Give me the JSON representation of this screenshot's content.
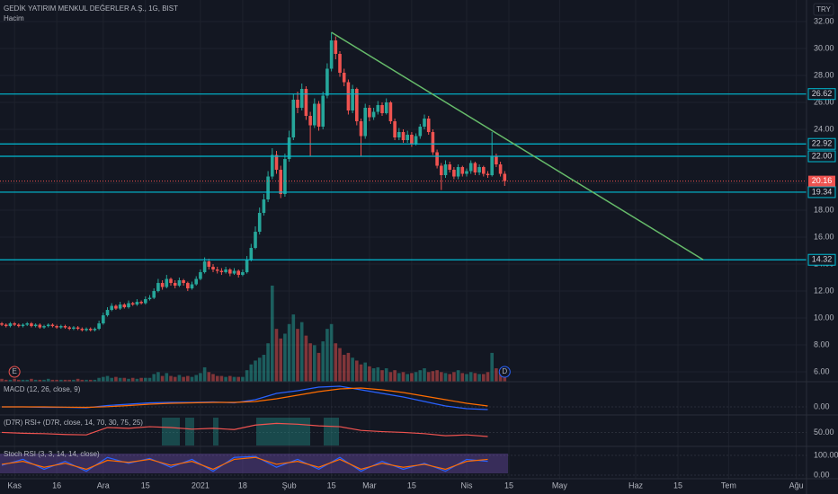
{
  "header": {
    "title": "GEDİK YATIRIM MENKUL DEĞERLER A.Ş., 1G, BIST",
    "volume_label": "Hacim",
    "currency": "TRY"
  },
  "main": {
    "ylim": [
      5.27,
      33.6
    ],
    "xlim": [
      -0.43,
      190.43
    ],
    "yticks": [
      {
        "value": 6,
        "label": "6.00"
      },
      {
        "value": 8,
        "label": "8.00"
      },
      {
        "value": 10,
        "label": "10.00"
      },
      {
        "value": 12,
        "label": "12.00"
      },
      {
        "value": 14,
        "label": "14.00"
      },
      {
        "value": 16,
        "label": "16.00"
      },
      {
        "value": 18,
        "label": "18.00"
      },
      {
        "value": 20,
        "label": "20.00"
      },
      {
        "value": 22,
        "label": "22.00"
      },
      {
        "value": 24,
        "label": "24.00"
      },
      {
        "value": 26,
        "label": "26.00"
      },
      {
        "value": 28,
        "label": "28.00"
      },
      {
        "value": 30,
        "label": "30.00"
      },
      {
        "value": 32,
        "label": "32.00"
      }
    ],
    "xticks": [
      {
        "value": 3,
        "label": "Kas"
      },
      {
        "value": 13,
        "label": "16"
      },
      {
        "value": 24,
        "label": "Ara"
      },
      {
        "value": 34,
        "label": "15"
      },
      {
        "value": 47,
        "label": "2021"
      },
      {
        "value": 57,
        "label": "18"
      },
      {
        "value": 68,
        "label": "Şub"
      },
      {
        "value": 78,
        "label": "15"
      },
      {
        "value": 87,
        "label": "Mar"
      },
      {
        "value": 97,
        "label": "15"
      },
      {
        "value": 110,
        "label": "Nis"
      },
      {
        "value": 120,
        "label": "15"
      },
      {
        "value": 132,
        "label": "May"
      },
      {
        "value": 150,
        "label": "Haz"
      },
      {
        "value": 160,
        "label": "15"
      },
      {
        "value": 172,
        "label": "Tem"
      },
      {
        "value": 188,
        "label": "Ağu"
      }
    ],
    "levels": [
      {
        "value": 26.62,
        "label": "26.62"
      },
      {
        "value": 22.92,
        "label": "22.92"
      },
      {
        "value": 22.0,
        "label": "22.00"
      },
      {
        "value": 19.34,
        "label": "19.34"
      },
      {
        "value": 14.32,
        "label": "14.32"
      }
    ],
    "last_price": {
      "value": 20.16,
      "label": "20.16"
    },
    "trendline": {
      "from": [
        78,
        31.2
      ],
      "to": [
        166,
        14.32
      ]
    },
    "events": [
      {
        "x": 3,
        "label": "E"
      },
      {
        "x": 119,
        "label": "D"
      }
    ],
    "up_color": "#26a69a",
    "down_color": "#ef5350",
    "level_color": "#00bcd4",
    "trend_color": "#66bb6a",
    "candles": [
      [
        9.6,
        9.7,
        9.4,
        9.5
      ],
      [
        9.5,
        9.6,
        9.3,
        9.4
      ],
      [
        9.4,
        9.7,
        9.3,
        9.6
      ],
      [
        9.6,
        9.7,
        9.4,
        9.5
      ],
      [
        9.5,
        9.6,
        9.3,
        9.4
      ],
      [
        9.4,
        9.6,
        9.3,
        9.5
      ],
      [
        9.5,
        9.7,
        9.4,
        9.6
      ],
      [
        9.6,
        9.7,
        9.3,
        9.4
      ],
      [
        9.4,
        9.6,
        9.3,
        9.5
      ],
      [
        9.5,
        9.6,
        9.2,
        9.3
      ],
      [
        9.3,
        9.5,
        9.2,
        9.4
      ],
      [
        9.4,
        9.6,
        9.3,
        9.5
      ],
      [
        9.5,
        9.6,
        9.3,
        9.4
      ],
      [
        9.4,
        9.5,
        9.2,
        9.3
      ],
      [
        9.3,
        9.5,
        9.2,
        9.4
      ],
      [
        9.4,
        9.5,
        9.2,
        9.3
      ],
      [
        9.3,
        9.4,
        9.1,
        9.2
      ],
      [
        9.2,
        9.4,
        9.1,
        9.3
      ],
      [
        9.3,
        9.4,
        9.1,
        9.2
      ],
      [
        9.2,
        9.3,
        9.0,
        9.1
      ],
      [
        9.1,
        9.3,
        9.0,
        9.2
      ],
      [
        9.2,
        9.3,
        9.0,
        9.1
      ],
      [
        9.1,
        9.3,
        9.0,
        9.2
      ],
      [
        9.2,
        9.8,
        9.1,
        9.6
      ],
      [
        9.6,
        10.4,
        9.5,
        10.2
      ],
      [
        10.2,
        10.8,
        10.1,
        10.6
      ],
      [
        10.6,
        11.1,
        10.5,
        10.9
      ],
      [
        10.9,
        11.0,
        10.6,
        10.7
      ],
      [
        10.7,
        11.2,
        10.6,
        11.0
      ],
      [
        11.0,
        11.1,
        10.7,
        10.8
      ],
      [
        10.8,
        11.3,
        10.7,
        11.1
      ],
      [
        11.1,
        11.2,
        10.9,
        11.0
      ],
      [
        11.0,
        11.4,
        10.9,
        11.2
      ],
      [
        11.2,
        11.3,
        11.0,
        11.1
      ],
      [
        11.1,
        11.6,
        11.0,
        11.4
      ],
      [
        11.4,
        11.7,
        11.3,
        11.5
      ],
      [
        11.5,
        12.2,
        11.4,
        12.0
      ],
      [
        12.0,
        12.9,
        11.9,
        12.6
      ],
      [
        12.6,
        12.8,
        12.1,
        12.3
      ],
      [
        12.3,
        13.2,
        12.2,
        12.9
      ],
      [
        12.9,
        13.0,
        12.4,
        12.6
      ],
      [
        12.6,
        12.8,
        12.2,
        12.4
      ],
      [
        12.4,
        13.0,
        12.3,
        12.8
      ],
      [
        12.8,
        12.9,
        12.4,
        12.6
      ],
      [
        12.6,
        12.7,
        12.0,
        12.2
      ],
      [
        12.2,
        12.7,
        12.1,
        12.5
      ],
      [
        12.5,
        13.1,
        12.4,
        12.9
      ],
      [
        12.9,
        13.6,
        12.8,
        13.4
      ],
      [
        13.4,
        14.5,
        13.3,
        14.2
      ],
      [
        14.2,
        14.4,
        13.6,
        13.8
      ],
      [
        13.8,
        14.0,
        13.4,
        13.6
      ],
      [
        13.6,
        13.8,
        13.3,
        13.5
      ],
      [
        13.5,
        13.7,
        13.2,
        13.4
      ],
      [
        13.4,
        13.8,
        13.3,
        13.6
      ],
      [
        13.6,
        13.7,
        13.1,
        13.3
      ],
      [
        13.3,
        13.7,
        13.2,
        13.5
      ],
      [
        13.5,
        13.6,
        13.0,
        13.2
      ],
      [
        13.2,
        13.6,
        13.1,
        13.4
      ],
      [
        13.4,
        14.6,
        13.3,
        14.3
      ],
      [
        14.3,
        15.5,
        14.2,
        15.2
      ],
      [
        15.2,
        16.8,
        15.1,
        16.4
      ],
      [
        16.4,
        18.2,
        16.2,
        17.8
      ],
      [
        17.8,
        19.2,
        17.6,
        18.8
      ],
      [
        18.8,
        20.9,
        18.6,
        20.5
      ],
      [
        20.5,
        22.6,
        20.3,
        22.1
      ],
      [
        22.1,
        22.4,
        20.7,
        21.0
      ],
      [
        21.0,
        21.3,
        18.9,
        19.2
      ],
      [
        19.2,
        22.2,
        19.0,
        21.8
      ],
      [
        21.8,
        23.9,
        21.6,
        23.4
      ],
      [
        23.4,
        26.6,
        23.2,
        26.2
      ],
      [
        26.2,
        26.8,
        25.2,
        25.6
      ],
      [
        25.6,
        27.4,
        25.4,
        27.0
      ],
      [
        27.0,
        27.2,
        24.7,
        25.0
      ],
      [
        25.0,
        25.3,
        22.0,
        24.3
      ],
      [
        24.3,
        26.3,
        24.1,
        25.9
      ],
      [
        25.9,
        26.1,
        23.9,
        24.2
      ],
      [
        24.2,
        26.8,
        24.0,
        26.5
      ],
      [
        26.5,
        28.9,
        26.3,
        28.5
      ],
      [
        28.5,
        31.2,
        28.3,
        30.6
      ],
      [
        30.6,
        30.9,
        29.2,
        29.6
      ],
      [
        29.6,
        29.8,
        27.9,
        28.2
      ],
      [
        28.2,
        28.5,
        27.2,
        27.5
      ],
      [
        27.5,
        27.7,
        25.1,
        25.4
      ],
      [
        25.4,
        27.3,
        25.2,
        27.0
      ],
      [
        27.0,
        27.1,
        24.3,
        24.6
      ],
      [
        24.6,
        24.8,
        22.0,
        23.5
      ],
      [
        23.5,
        25.9,
        23.3,
        25.6
      ],
      [
        25.6,
        25.8,
        24.6,
        24.9
      ],
      [
        24.9,
        25.6,
        24.7,
        25.3
      ],
      [
        25.3,
        26.1,
        25.1,
        25.8
      ],
      [
        25.8,
        26.0,
        25.0,
        25.2
      ],
      [
        25.2,
        26.3,
        25.1,
        26.0
      ],
      [
        26.0,
        26.1,
        24.4,
        24.6
      ],
      [
        24.6,
        24.8,
        23.2,
        23.4
      ],
      [
        23.4,
        24.1,
        23.2,
        23.8
      ],
      [
        23.8,
        24.0,
        23.0,
        23.2
      ],
      [
        23.2,
        23.9,
        23.0,
        23.6
      ],
      [
        23.6,
        23.8,
        22.7,
        22.9
      ],
      [
        22.9,
        23.7,
        22.8,
        23.5
      ],
      [
        23.5,
        24.4,
        23.3,
        24.2
      ],
      [
        24.2,
        25.1,
        24.0,
        24.8
      ],
      [
        24.8,
        25.0,
        23.6,
        23.8
      ],
      [
        23.8,
        24.0,
        22.1,
        22.3
      ],
      [
        22.3,
        22.5,
        21.1,
        21.3
      ],
      [
        21.3,
        21.5,
        19.5,
        20.6
      ],
      [
        20.6,
        21.7,
        20.4,
        21.4
      ],
      [
        21.4,
        21.6,
        20.8,
        21.0
      ],
      [
        21.0,
        21.2,
        20.3,
        20.5
      ],
      [
        20.5,
        21.4,
        20.3,
        21.2
      ],
      [
        21.2,
        21.3,
        20.5,
        20.7
      ],
      [
        20.7,
        21.1,
        20.5,
        20.9
      ],
      [
        20.9,
        21.7,
        20.7,
        21.5
      ],
      [
        21.5,
        21.6,
        20.6,
        20.8
      ],
      [
        20.8,
        21.4,
        20.6,
        21.2
      ],
      [
        21.2,
        21.3,
        20.5,
        20.7
      ],
      [
        20.7,
        20.9,
        20.4,
        20.6
      ],
      [
        20.6,
        23.8,
        20.5,
        22.0
      ],
      [
        22.0,
        22.2,
        21.2,
        21.4
      ],
      [
        21.4,
        21.6,
        20.5,
        20.7
      ],
      [
        20.7,
        20.9,
        19.8,
        20.16
      ]
    ],
    "volume_lim": [
      0,
      100
    ],
    "volume": [
      3,
      2,
      2,
      3,
      2,
      2,
      2,
      3,
      2,
      2,
      2,
      3,
      2,
      2,
      2,
      2,
      2,
      2,
      3,
      2,
      2,
      2,
      2,
      4,
      5,
      6,
      4,
      5,
      4,
      4,
      3,
      4,
      3,
      4,
      4,
      4,
      8,
      10,
      6,
      9,
      6,
      5,
      7,
      5,
      6,
      5,
      7,
      9,
      15,
      10,
      8,
      6,
      6,
      5,
      6,
      5,
      5,
      5,
      12,
      18,
      22,
      25,
      28,
      40,
      100,
      55,
      45,
      50,
      60,
      70,
      55,
      62,
      48,
      40,
      38,
      30,
      42,
      55,
      60,
      40,
      35,
      28,
      30,
      25,
      22,
      18,
      20,
      16,
      14,
      15,
      12,
      14,
      10,
      12,
      9,
      10,
      8,
      9,
      10,
      12,
      14,
      10,
      11,
      12,
      10,
      9,
      8,
      10,
      12,
      9,
      8,
      10,
      9,
      8,
      8,
      10,
      30,
      14,
      10,
      6
    ]
  },
  "indicators": {
    "x": [
      0,
      5,
      10,
      15,
      20,
      25,
      30,
      35,
      40,
      45,
      50,
      55,
      60,
      65,
      70,
      75,
      80,
      85,
      90,
      95,
      100,
      105,
      110,
      115
    ],
    "panes": [
      {
        "label": "MACD (12, 26, close, 9)",
        "ylim": [
          -0.9,
          2.5
        ],
        "yticks": [
          {
            "value": 0,
            "label": "0.00"
          }
        ],
        "series": [
          {
            "color": "#2962ff",
            "values": [
              0,
              0,
              -0.05,
              -0.05,
              -0.1,
              0.15,
              0.3,
              0.45,
              0.5,
              0.5,
              0.55,
              0.45,
              0.8,
              1.5,
              1.8,
              2.2,
              2.3,
              1.9,
              1.5,
              1.1,
              0.6,
              0.1,
              -0.2,
              -0.3
            ]
          },
          {
            "color": "#ff6d00",
            "values": [
              0,
              0,
              0,
              -0.03,
              -0.05,
              0.02,
              0.15,
              0.3,
              0.4,
              0.45,
              0.5,
              0.5,
              0.6,
              0.9,
              1.3,
              1.7,
              2.0,
              2.1,
              1.9,
              1.6,
              1.2,
              0.8,
              0.4,
              0.1
            ]
          }
        ]
      },
      {
        "label": "(D7R) RSI+ (D7R, close, 14, 70, 30, 75, 25)",
        "ylim": [
          16,
          86
        ],
        "yticks": [
          {
            "value": 50,
            "label": "50.00"
          }
        ],
        "series": [
          {
            "color": "#ef5350",
            "values": [
              50,
              48,
              47,
              45,
              44,
              62,
              60,
              64,
              62,
              58,
              60,
              57,
              68,
              72,
              70,
              66,
              64,
              55,
              52,
              50,
              47,
              42,
              44,
              40
            ]
          }
        ]
      },
      {
        "label": "Stoch RSI (3, 3, 14, 14, close)",
        "ylim": [
          -18,
          132
        ],
        "yticks": [
          {
            "value": 0,
            "label": "0.00"
          },
          {
            "value": 100,
            "label": "100.00"
          }
        ],
        "series": [
          {
            "color": "#2962ff",
            "values": [
              50,
              80,
              30,
              70,
              20,
              90,
              60,
              85,
              40,
              80,
              20,
              90,
              95,
              40,
              80,
              30,
              90,
              20,
              70,
              30,
              60,
              20,
              80,
              70
            ]
          },
          {
            "color": "#ff6d00",
            "values": [
              55,
              70,
              40,
              60,
              30,
              75,
              65,
              80,
              50,
              70,
              30,
              80,
              90,
              55,
              70,
              40,
              80,
              30,
              60,
              40,
              55,
              30,
              70,
              80
            ]
          }
        ]
      }
    ]
  }
}
